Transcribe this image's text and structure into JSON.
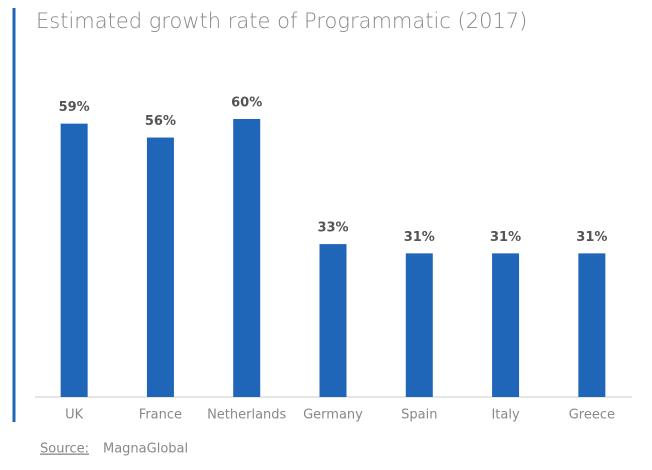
{
  "chart_data": {
    "type": "bar",
    "title": "Estimated growth rate of Programmatic (2017)",
    "categories": [
      "UK",
      "France",
      "Netherlands",
      "Germany",
      "Spain",
      "Italy",
      "Greece"
    ],
    "values": [
      59,
      56,
      60,
      33,
      31,
      31,
      31
    ],
    "value_labels": [
      "59%",
      "56%",
      "60%",
      "33%",
      "31%",
      "31%",
      "31%"
    ],
    "color": "#1f66b8",
    "source": {
      "label": "Source:",
      "name": "MagnaGlobal"
    }
  }
}
